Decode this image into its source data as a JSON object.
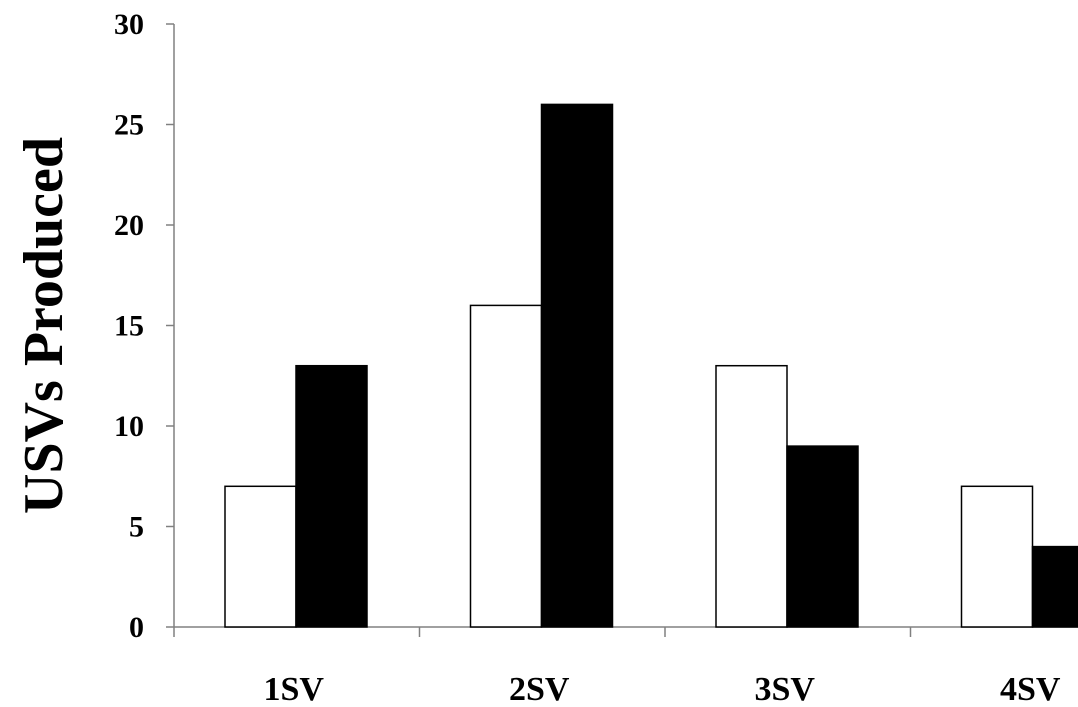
{
  "chart_data": {
    "type": "bar",
    "title": "",
    "xlabel": "",
    "ylabel": "USVs Produced",
    "categories": [
      "1SV",
      "2SV",
      "3SV",
      "4SV"
    ],
    "series": [
      {
        "values": [
          7,
          16,
          13,
          7
        ],
        "color": "#ffffff"
      },
      {
        "values": [
          13,
          26,
          9,
          4
        ],
        "color": "#000000"
      }
    ],
    "ylim": [
      0,
      30
    ],
    "yticks": [
      0,
      5,
      10,
      15,
      20,
      25,
      30
    ],
    "grid": false,
    "legend": "none"
  }
}
